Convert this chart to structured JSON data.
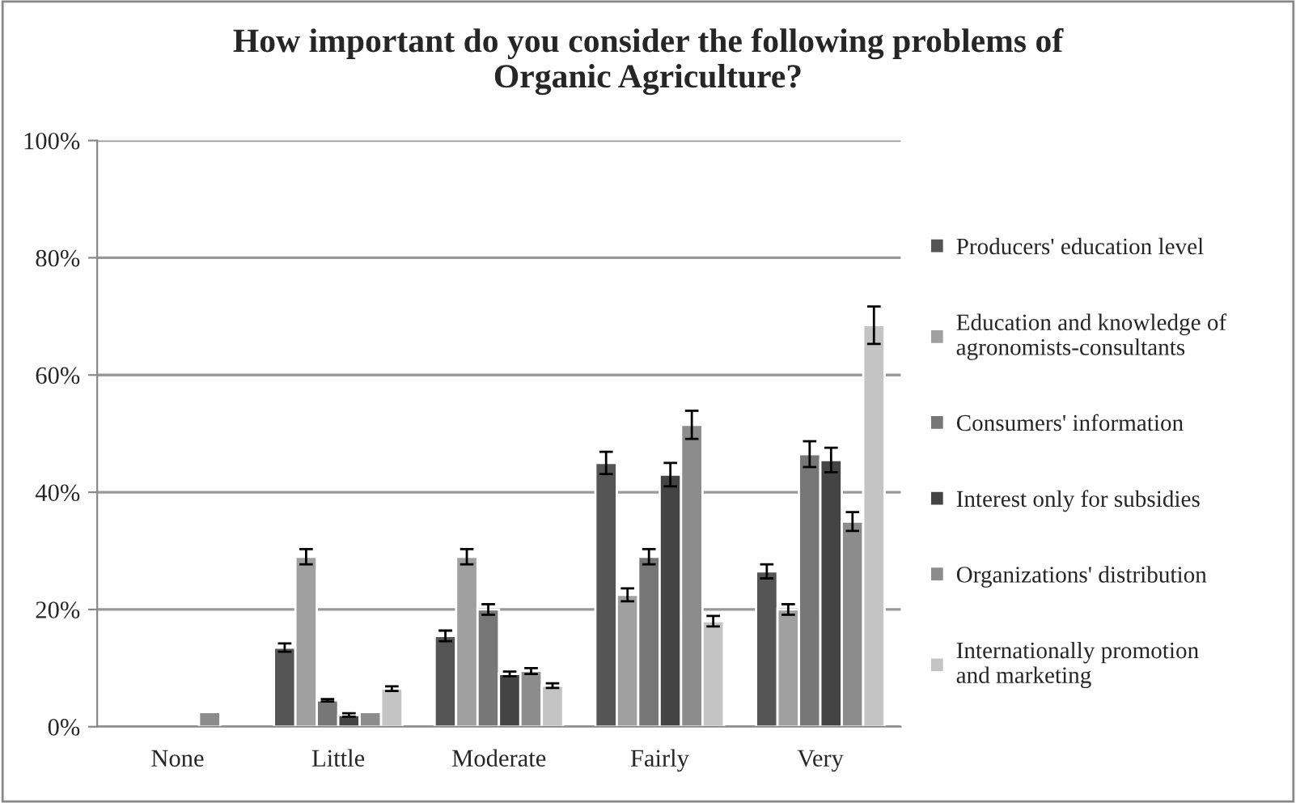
{
  "chart_data": {
    "type": "bar",
    "title": "How important do you consider the following problems of\nOrganic Agriculture?",
    "categories": [
      "None",
      "Little",
      "Moderate",
      "Fairly",
      "Very"
    ],
    "series": [
      {
        "name": "Producers' education level",
        "color": "#555555",
        "values": [
          null,
          13.5,
          15.5,
          45,
          26.5
        ],
        "errors": [
          null,
          0.7,
          0.9,
          1.9,
          1.2
        ]
      },
      {
        "name": "Education and knowledge of\nagronomists-consultants",
        "color": "#a0a0a0",
        "values": [
          null,
          29,
          29,
          22.5,
          20
        ],
        "errors": [
          null,
          1.3,
          1.3,
          1.1,
          0.9
        ]
      },
      {
        "name": "Consumers' information",
        "color": "#777777",
        "values": [
          null,
          4.5,
          20,
          29,
          46.5
        ],
        "errors": [
          null,
          0.2,
          0.9,
          1.3,
          2.2
        ]
      },
      {
        "name": "Interest only for subsidies",
        "color": "#444444",
        "values": [
          null,
          2,
          9,
          43,
          45.5
        ],
        "errors": [
          null,
          0.3,
          0.4,
          2.0,
          2.1
        ]
      },
      {
        "name": "Organizations' distribution",
        "color": "#8c8c8c",
        "values": [
          2.5,
          2.5,
          9.5,
          51.5,
          35
        ],
        "errors": [
          null,
          null,
          0.5,
          2.4,
          1.6
        ]
      },
      {
        "name": "Internationally promotion\nand marketing",
        "color": "#c4c4c4",
        "values": [
          null,
          6.5,
          7,
          18,
          68.5
        ],
        "errors": [
          null,
          0.4,
          0.4,
          0.9,
          3.2
        ]
      }
    ],
    "ylim": [
      0,
      100
    ],
    "yticks": [
      {
        "value": 0,
        "label": "0%"
      },
      {
        "value": 20,
        "label": "20%"
      },
      {
        "value": 40,
        "label": "40%"
      },
      {
        "value": 60,
        "label": "60%"
      },
      {
        "value": 80,
        "label": "80%"
      },
      {
        "value": 100,
        "label": "100%"
      }
    ],
    "grid": "y",
    "legend": "right"
  }
}
